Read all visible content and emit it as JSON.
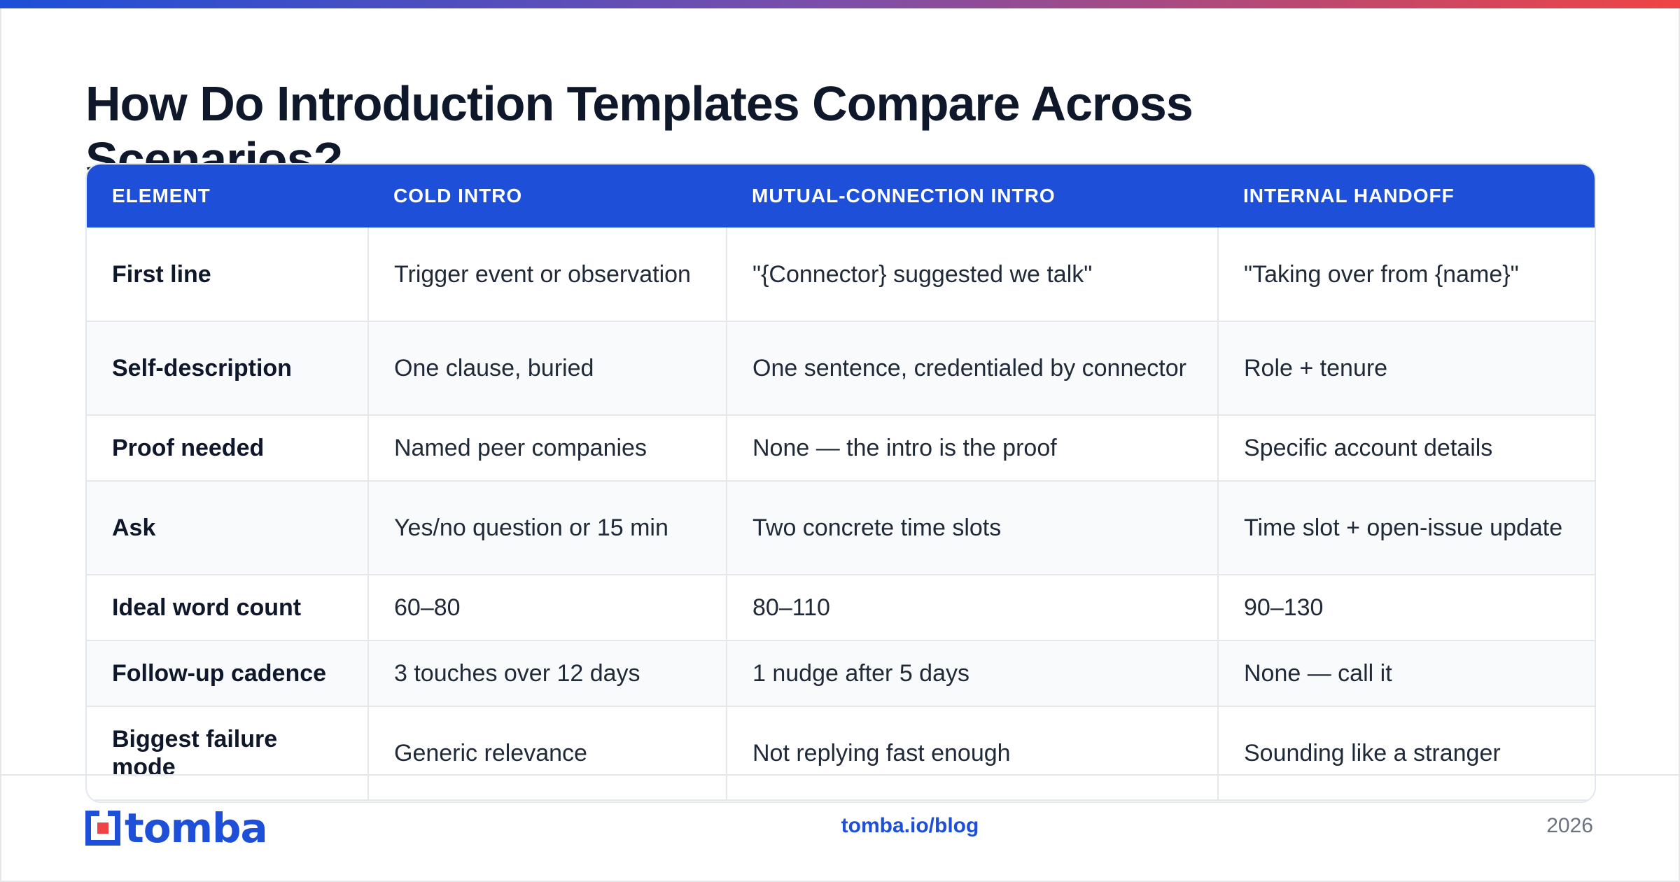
{
  "title": "How Do Introduction Templates Compare Across Scenarios?",
  "colors": {
    "accent": "#1d4fd8",
    "header_text": "#ffffff",
    "logo_dot": "#ef4444"
  },
  "table": {
    "headers": [
      "ELEMENT",
      "COLD INTRO",
      "MUTUAL-CONNECTION INTRO",
      "INTERNAL HANDOFF"
    ],
    "rows": [
      [
        "First line",
        "Trigger event or observation",
        "\"{Connector} suggested we talk\"",
        "\"Taking over from {name}\""
      ],
      [
        "Self-description",
        "One clause, buried",
        "One sentence, credentialed by connector",
        "Role + tenure"
      ],
      [
        "Proof needed",
        "Named peer companies",
        "None — the intro is the proof",
        "Specific account details"
      ],
      [
        "Ask",
        "Yes/no question or 15 min",
        "Two concrete time slots",
        "Time slot + open-issue update"
      ],
      [
        "Ideal word count",
        "60–80",
        "80–110",
        "90–130"
      ],
      [
        "Follow-up cadence",
        "3 touches over 12 days",
        "1 nudge after 5 days",
        "None — call it"
      ],
      [
        "Biggest failure mode",
        "Generic relevance",
        "Not replying fast enough",
        "Sounding like a stranger"
      ]
    ]
  },
  "footer": {
    "logo_text": "tomba",
    "url": "tomba.io/blog",
    "year": "2026"
  }
}
